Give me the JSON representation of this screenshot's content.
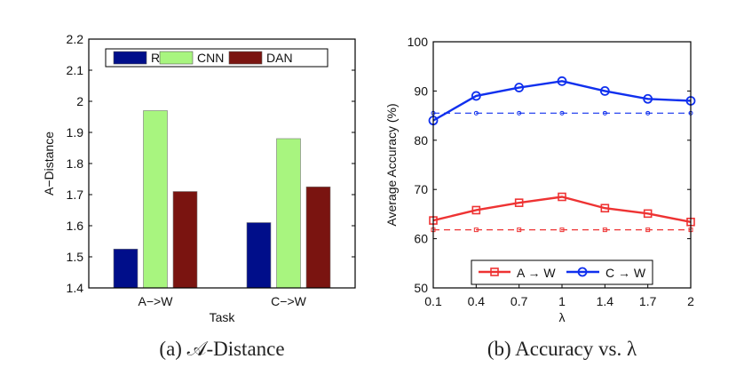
{
  "chart_data": [
    {
      "type": "bar",
      "caption": "(a) 𝒜-Distance",
      "xlabel": "Task",
      "ylabel": "A−Distance",
      "categories": [
        "A−>W",
        "C−>W"
      ],
      "ylim": [
        1.4,
        2.2
      ],
      "yticks": [
        "1.4",
        "1.5",
        "1.6",
        "1.7",
        "1.8",
        "1.9",
        "2",
        "2.1",
        "2.2"
      ],
      "legend_position": "top",
      "series": [
        {
          "name": "Raw",
          "color": "#000e8a",
          "values": [
            1.525,
            1.61
          ]
        },
        {
          "name": "CNN",
          "color": "#a8f57f",
          "values": [
            1.97,
            1.88
          ]
        },
        {
          "name": "DAN",
          "color": "#7a1410",
          "values": [
            1.71,
            1.725
          ]
        }
      ]
    },
    {
      "type": "line",
      "caption": "(b) Accuracy vs. λ",
      "xlabel": "λ",
      "ylabel": "Average Accuracy (%)",
      "x": [
        "0.1",
        "0.4",
        "0.7",
        "1",
        "1.4",
        "1.7",
        "2"
      ],
      "ylim": [
        50,
        100
      ],
      "yticks": [
        "50",
        "60",
        "70",
        "80",
        "90",
        "100"
      ],
      "legend_position": "bottom",
      "series": [
        {
          "name": "A → W",
          "color": "#ee3333",
          "marker": "square",
          "values": [
            63.7,
            65.8,
            67.3,
            68.5,
            66.2,
            65.1,
            63.4
          ],
          "baseline": 61.8
        },
        {
          "name": "C → W",
          "color": "#1030ee",
          "marker": "circle",
          "values": [
            84.0,
            89.0,
            90.7,
            92.0,
            90.0,
            88.4,
            88.0
          ],
          "baseline": 85.5
        }
      ]
    }
  ]
}
